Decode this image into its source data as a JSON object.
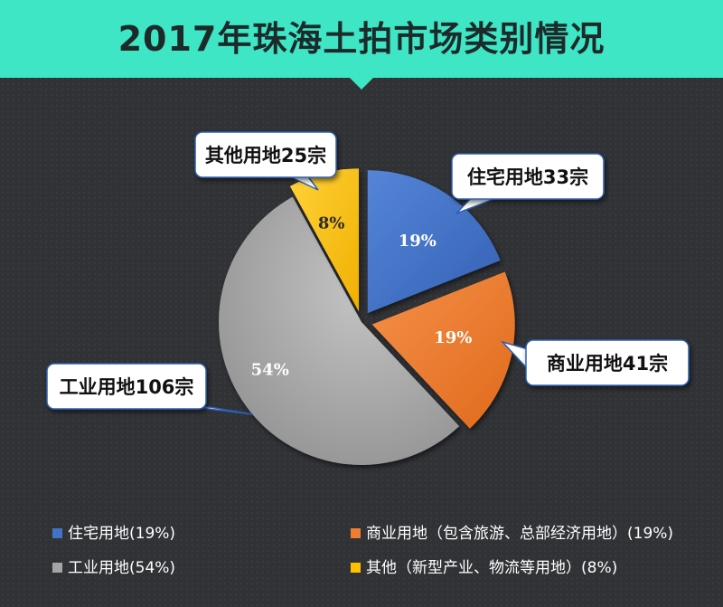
{
  "title": "2017年珠海土拍市场类别情况",
  "chart_data": {
    "type": "pie",
    "categories": [
      "住宅用地",
      "商业用地",
      "工业用地",
      "其他用地"
    ],
    "values": [
      19,
      19,
      54,
      8
    ],
    "value_labels": [
      "19%",
      "19%",
      "54%",
      "8%"
    ],
    "callouts": [
      "住宅用地33宗",
      "商业用地41宗",
      "工业用地106宗",
      "其他用地25宗"
    ],
    "colors": [
      "#4472c4",
      "#ed7d31",
      "#a5a5a5",
      "#ffc000"
    ],
    "exploded": true,
    "legend_position": "bottom",
    "legend": [
      "住宅用地(19%)",
      "商业用地（包含旅游、总部经济用地）(19%)",
      "工业用地(54%)",
      "其他（新型产业、物流等用地）(8%)"
    ]
  }
}
